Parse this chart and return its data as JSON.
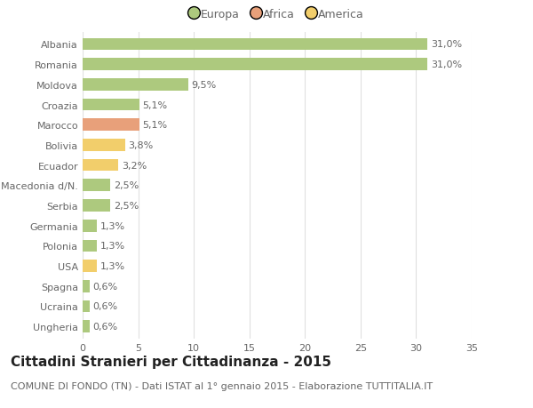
{
  "categories": [
    "Albania",
    "Romania",
    "Moldova",
    "Croazia",
    "Marocco",
    "Bolivia",
    "Ecuador",
    "Macedonia d/N.",
    "Serbia",
    "Germania",
    "Polonia",
    "USA",
    "Spagna",
    "Ucraina",
    "Ungheria"
  ],
  "values": [
    31.0,
    31.0,
    9.5,
    5.1,
    5.1,
    3.8,
    3.2,
    2.5,
    2.5,
    1.3,
    1.3,
    1.3,
    0.6,
    0.6,
    0.6
  ],
  "labels": [
    "31,0%",
    "31,0%",
    "9,5%",
    "5,1%",
    "5,1%",
    "3,8%",
    "3,2%",
    "2,5%",
    "2,5%",
    "1,3%",
    "1,3%",
    "1,3%",
    "0,6%",
    "0,6%",
    "0,6%"
  ],
  "colors": [
    "#adc97e",
    "#adc97e",
    "#adc97e",
    "#adc97e",
    "#e8a07a",
    "#f2ce6b",
    "#f2ce6b",
    "#adc97e",
    "#adc97e",
    "#adc97e",
    "#adc97e",
    "#f2ce6b",
    "#adc97e",
    "#adc97e",
    "#adc97e"
  ],
  "legend_labels": [
    "Europa",
    "Africa",
    "America"
  ],
  "legend_colors": [
    "#adc97e",
    "#e8a07a",
    "#f2ce6b"
  ],
  "title": "Cittadini Stranieri per Cittadinanza - 2015",
  "subtitle": "COMUNE DI FONDO (TN) - Dati ISTAT al 1° gennaio 2015 - Elaborazione TUTTITALIA.IT",
  "xlim": [
    0,
    35
  ],
  "xticks": [
    0,
    5,
    10,
    15,
    20,
    25,
    30,
    35
  ],
  "background_color": "#ffffff",
  "grid_color": "#e0e0e0",
  "bar_height": 0.6,
  "title_fontsize": 11,
  "subtitle_fontsize": 8,
  "label_fontsize": 8,
  "tick_fontsize": 8,
  "legend_fontsize": 9,
  "text_color": "#666666"
}
